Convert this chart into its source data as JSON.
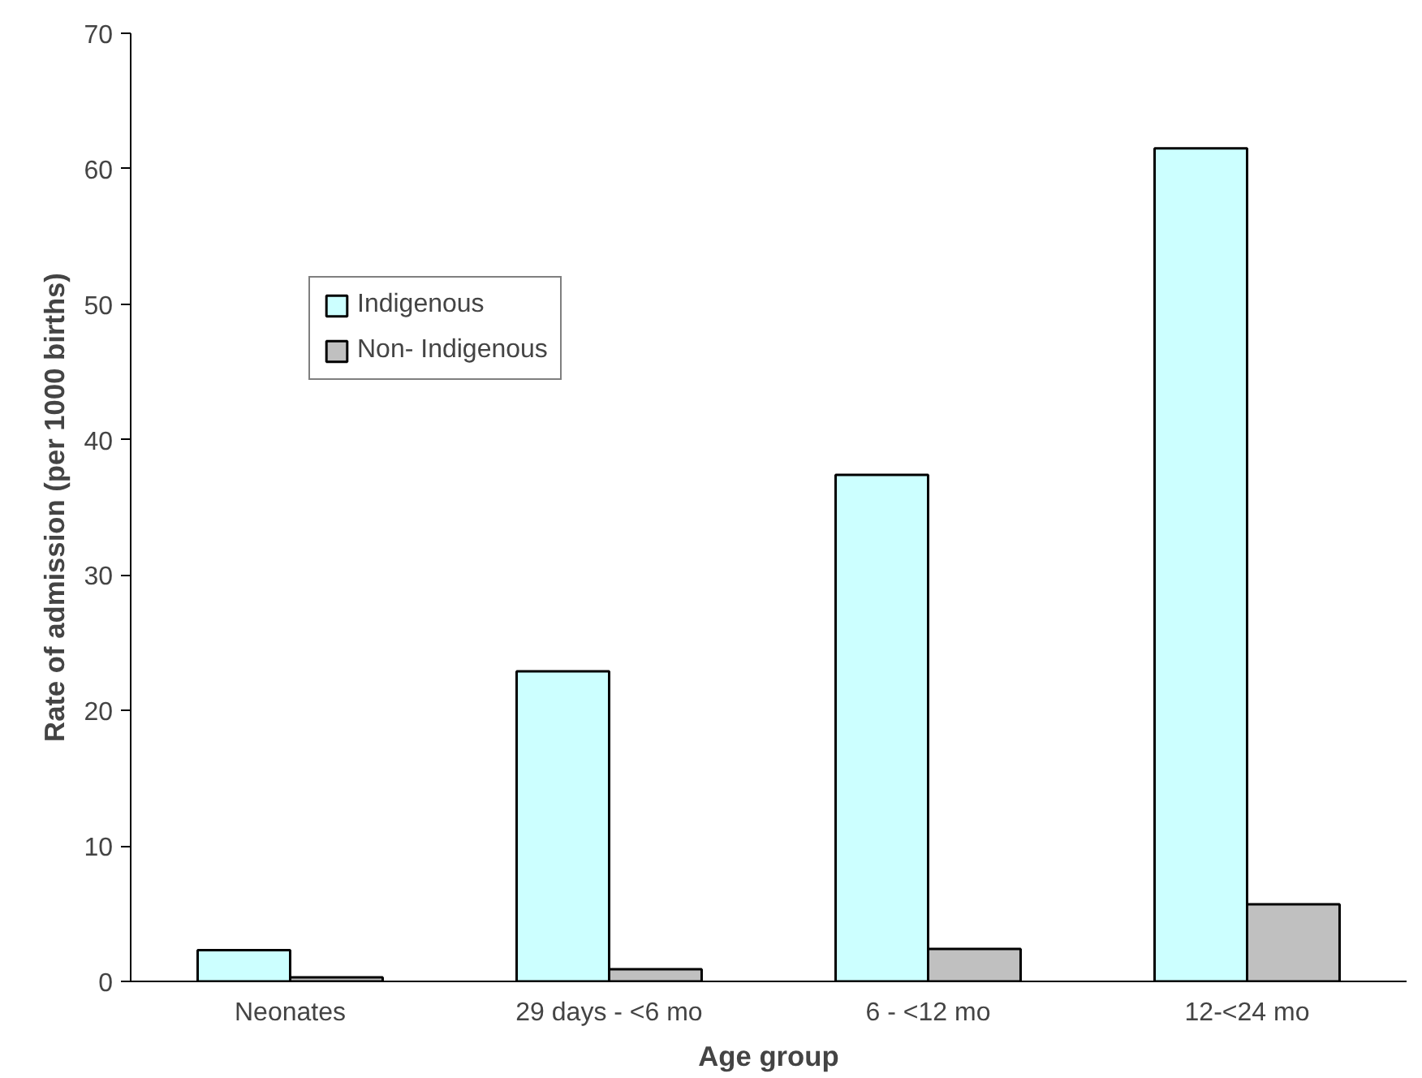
{
  "chart_data": {
    "type": "bar",
    "xlabel": "Age group",
    "ylabel": "Rate of admission (per 1000 births)",
    "categories": [
      "Neonates",
      "29 days - <6 mo",
      "6 - <12 mo",
      "12-<24 mo"
    ],
    "series": [
      {
        "name": "Indigenous",
        "color": "#ccffff",
        "values": [
          2.3,
          22.9,
          37.4,
          61.5
        ]
      },
      {
        "name": "Non- Indigenous",
        "color": "#c0c0c0",
        "values": [
          0.3,
          0.9,
          2.4,
          5.7
        ]
      }
    ],
    "ylim": [
      0,
      70
    ],
    "yticks": [
      0,
      10,
      20,
      30,
      40,
      50,
      60,
      70
    ],
    "grid": false,
    "legend": "top left"
  }
}
